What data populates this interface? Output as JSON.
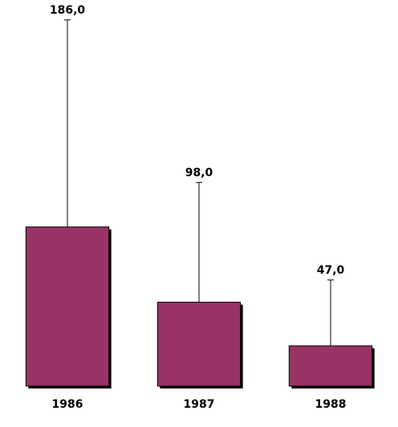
{
  "chart_data": {
    "type": "bar",
    "categories": [
      "1986",
      "1987",
      "1988"
    ],
    "values": [
      186,
      98,
      47
    ],
    "value_labels": [
      "186,0",
      "98,0",
      "47,0"
    ],
    "errors": [
      242,
      140,
      77
    ],
    "color": "#993366",
    "ylim": [
      0,
      440
    ]
  }
}
